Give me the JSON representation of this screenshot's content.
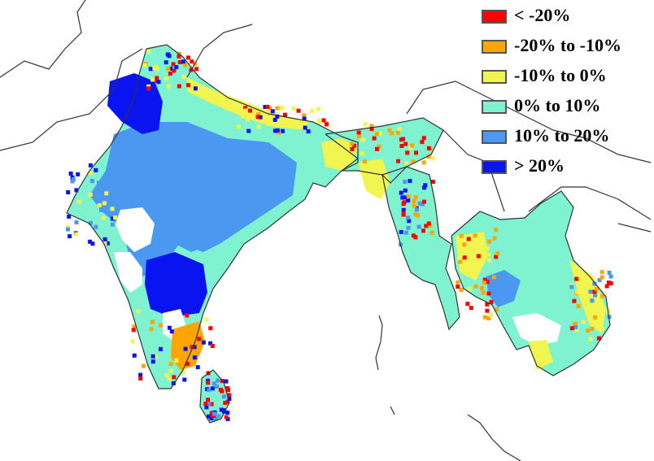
{
  "legend": {
    "items": [
      {
        "label": "< -20%",
        "color": "#ff0000"
      },
      {
        "label": "-20% to -10%",
        "color": "#ffa500"
      },
      {
        "label": "-10% to 0%",
        "color": "#f0f550"
      },
      {
        "label": "0% to 10%",
        "color": "#7ff2cf"
      },
      {
        "label": "10% to 20%",
        "color": "#4a98f0"
      },
      {
        "label": "> 20%",
        "color": "#0a14f0"
      }
    ]
  },
  "colors": {
    "border": "#333333",
    "no_data": "#ffffff"
  }
}
